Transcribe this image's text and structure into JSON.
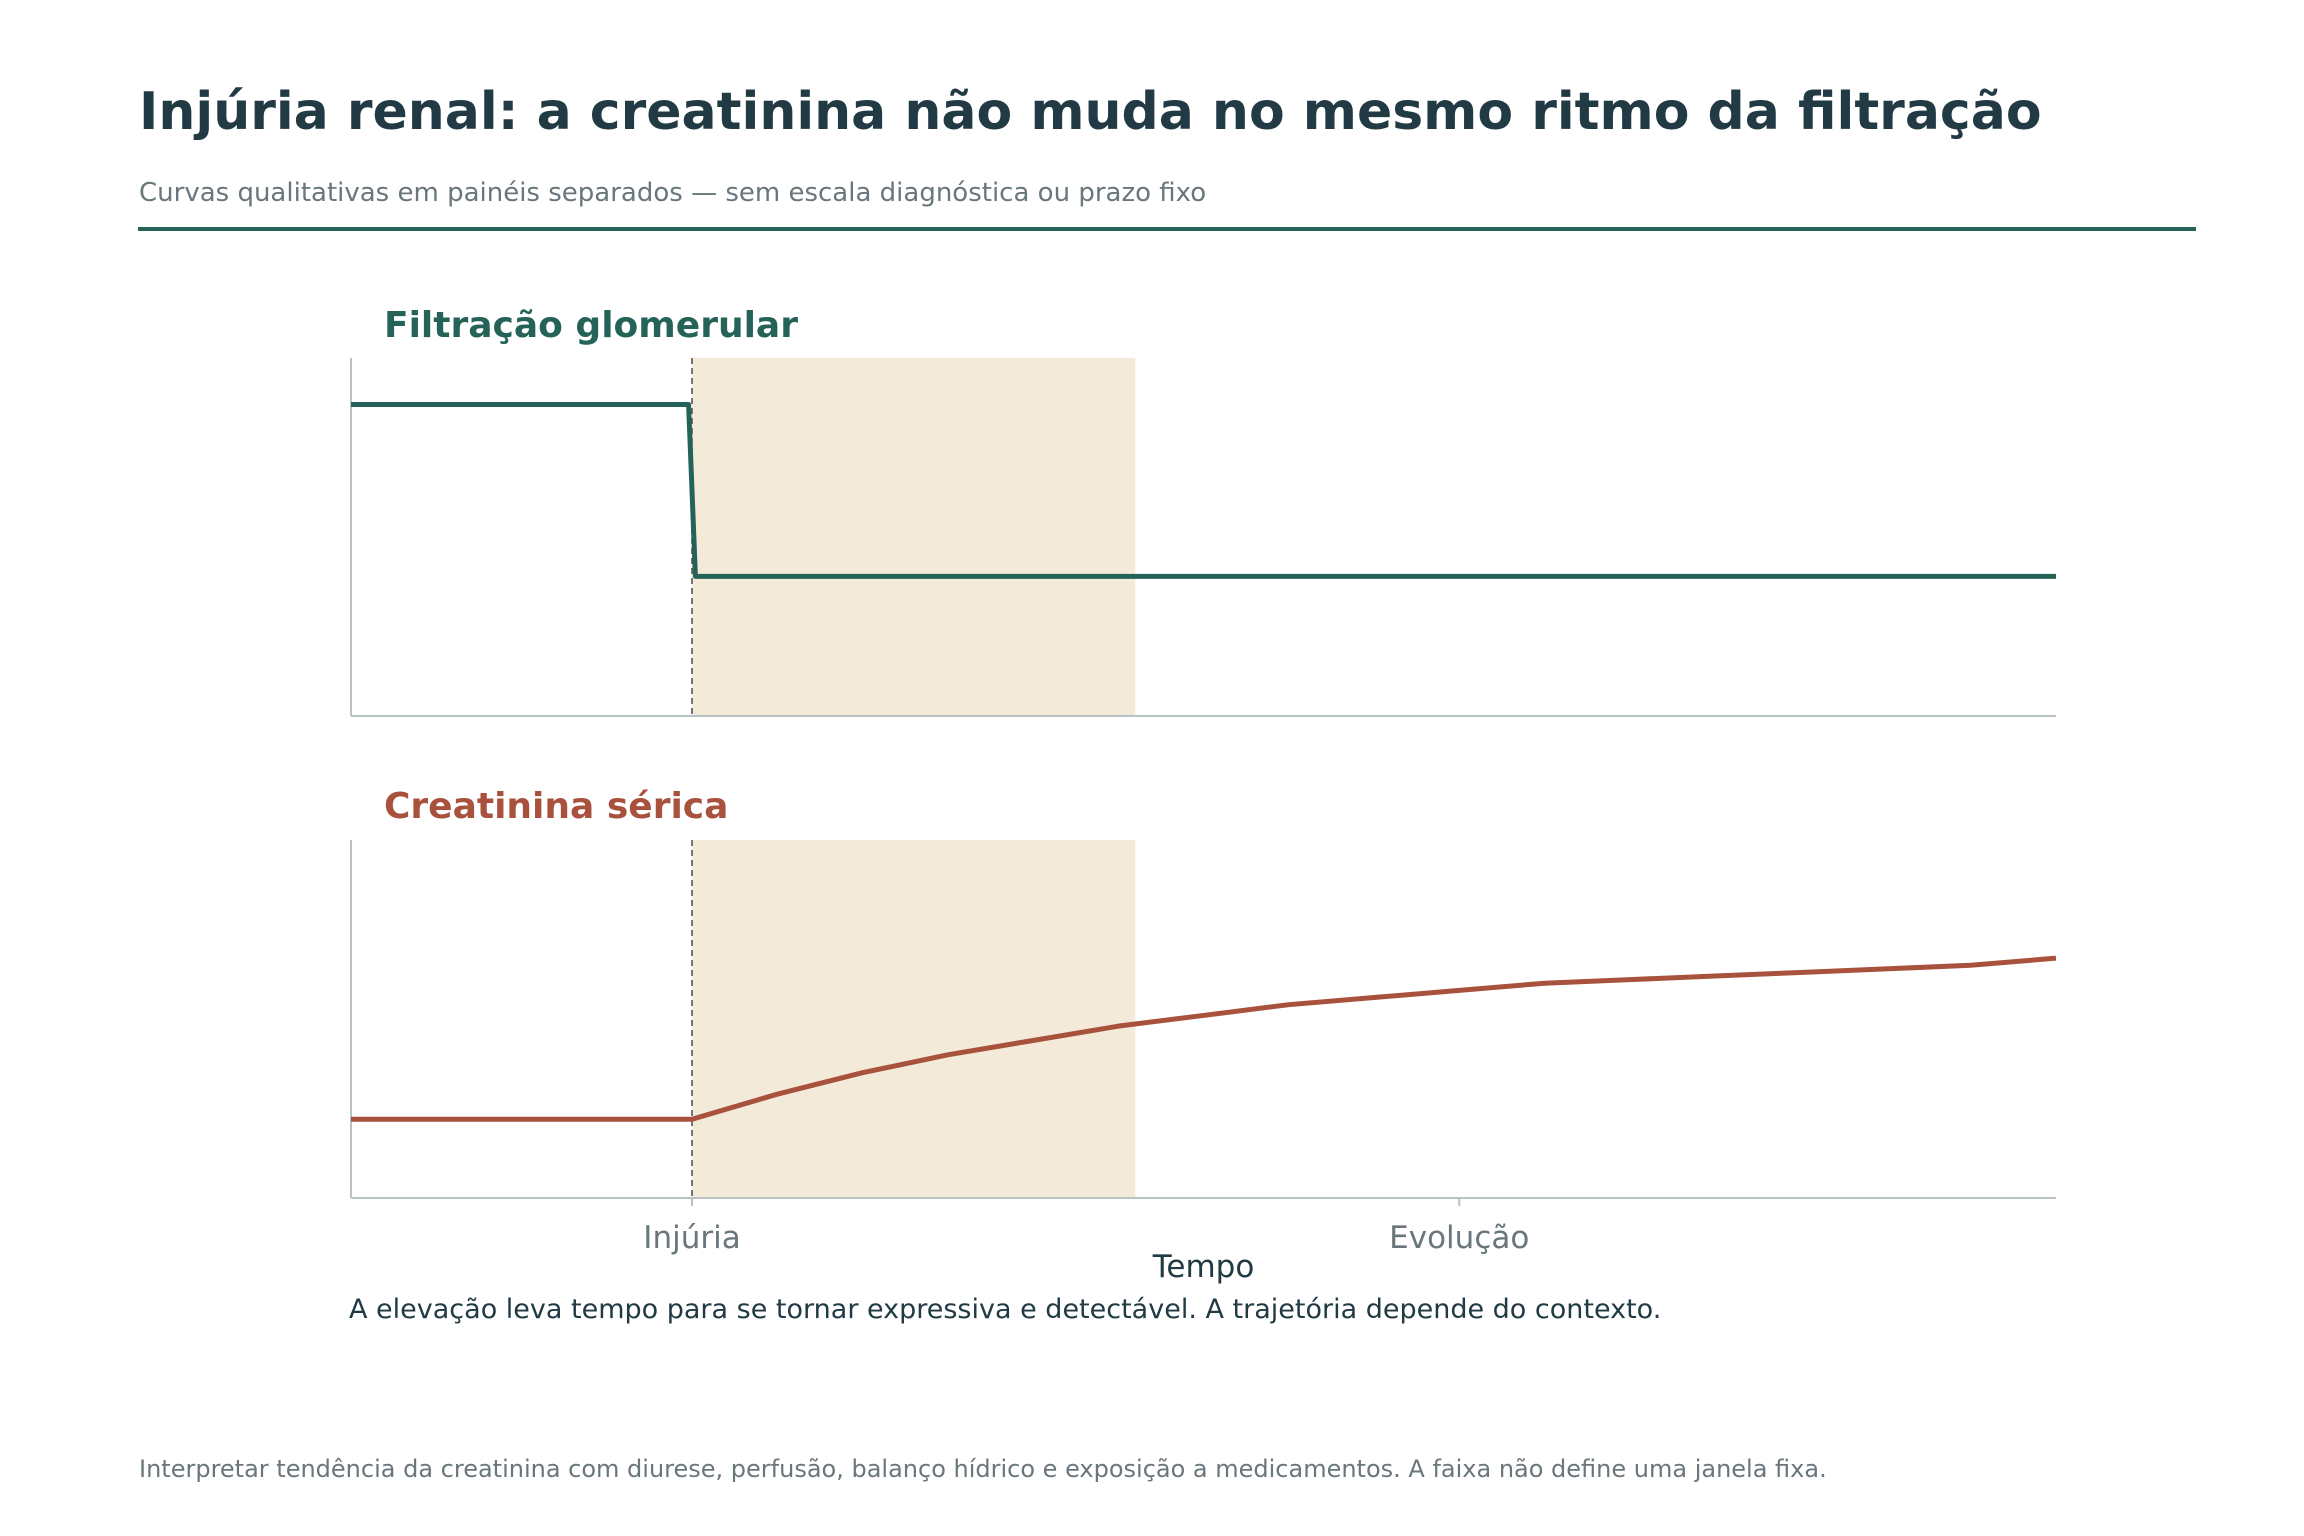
{
  "header": {
    "title": "Injúria renal: a creatinina não muda no mesmo ritmo da filtração",
    "subtitle": "Curvas qualitativas em painéis separados — sem escala diagnóstica ou prazo fixo"
  },
  "caption": "A elevação leva tempo para se tornar expressiva e detectável. A trajetória depende do contexto.",
  "footnote": "Interpretar tendência da creatinina com diurese, perfusão, balanço hídrico e exposição a medicamentos. A faixa não define uma janela fixa.",
  "colors": {
    "text_dark": "#213a44",
    "text_muted": "#69767c",
    "filtration": "#256359",
    "creatinine": "#a8523e",
    "shade": "#f4ead9",
    "axis": "#b9c2c4"
  },
  "chart_data": {
    "type": "line",
    "qualitative": true,
    "shared_x": true,
    "xlabel": "Tempo",
    "xlim": [
      -1,
      4
    ],
    "x_ticks": [
      {
        "value": 0,
        "label": "Injúria"
      },
      {
        "value": 2.25,
        "label": "Evolução"
      }
    ],
    "injury_marker": {
      "x": 0,
      "style": "dashed"
    },
    "shaded_band": {
      "x0": 0,
      "x1": 1.3
    },
    "panels": [
      {
        "title": "Filtração glomerular",
        "color_key": "filtration",
        "ylim": [
          0,
          1
        ],
        "y_ticks": [],
        "x": [
          -1,
          -0.01,
          0.01,
          4
        ],
        "y": [
          0.87,
          0.87,
          0.39,
          0.39
        ]
      },
      {
        "title": "Creatinina sérica",
        "color_key": "creatinine",
        "ylim": [
          0,
          1
        ],
        "y_ticks": [],
        "x": [
          -1,
          -0.5,
          0,
          0.25,
          0.5,
          0.75,
          1.0,
          1.25,
          1.5,
          1.75,
          2.0,
          2.25,
          2.5,
          2.75,
          3.0,
          3.25,
          3.5,
          3.75,
          4.0
        ],
        "y": [
          0.22,
          0.22,
          0.22,
          0.29,
          0.35,
          0.4,
          0.44,
          0.48,
          0.51,
          0.54,
          0.56,
          0.58,
          0.6,
          0.61,
          0.62,
          0.63,
          0.64,
          0.65,
          0.67
        ]
      }
    ]
  }
}
